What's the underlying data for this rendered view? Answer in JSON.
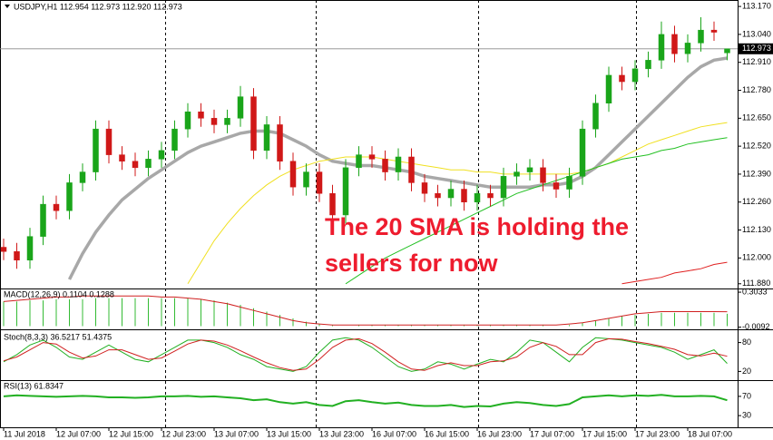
{
  "chart_data": {
    "type": "candlestick",
    "title": "USDJPY,H1  112.954 112.973 112.920 112.973",
    "categories": [
      "11 Jul 2018",
      null,
      null,
      null,
      "12 Jul 07:00",
      null,
      null,
      null,
      "12 Jul 15:00",
      null,
      null,
      null,
      "12 Jul 23:00",
      null,
      null,
      null,
      "13 Jul 07:00",
      null,
      null,
      null,
      "13 Jul 15:00",
      null,
      null,
      null,
      "13 Jul 23:00",
      null,
      null,
      null,
      "16 Jul 07:00",
      null,
      null,
      null,
      "16 Jul 15:00",
      null,
      null,
      null,
      "16 Jul 23:00",
      null,
      null,
      null,
      "17 Jul 07:00",
      null,
      null,
      null,
      "17 Jul 15:00",
      null,
      null,
      null,
      "17 Jul 23:00",
      null,
      null,
      null,
      "18 Jul 07:00",
      null,
      null,
      null
    ],
    "open": [
      112.05,
      112.03,
      111.99,
      112.1,
      112.25,
      112.22,
      112.35,
      112.4,
      112.6,
      112.48,
      112.45,
      112.42,
      112.46,
      112.5,
      112.6,
      112.68,
      112.65,
      112.62,
      112.65,
      112.75,
      112.5,
      112.62,
      112.45,
      112.33,
      112.4,
      112.3,
      112.2,
      112.42,
      112.48,
      112.46,
      112.4,
      112.47,
      112.35,
      112.3,
      112.28,
      112.32,
      112.26,
      112.3,
      112.28,
      112.38,
      112.4,
      112.42,
      112.35,
      112.32,
      112.38,
      112.6,
      112.72,
      112.85,
      112.82,
      112.88,
      112.92,
      113.04,
      112.95,
      113.0,
      113.06,
      112.954
    ],
    "high": [
      112.09,
      112.07,
      112.14,
      112.29,
      112.29,
      112.39,
      112.44,
      112.64,
      112.64,
      112.52,
      112.49,
      112.5,
      112.54,
      112.64,
      112.72,
      112.72,
      112.69,
      112.69,
      112.8,
      112.79,
      112.66,
      112.66,
      112.49,
      112.44,
      112.44,
      112.34,
      112.46,
      112.52,
      112.52,
      112.5,
      112.51,
      112.51,
      112.39,
      112.34,
      112.36,
      112.36,
      112.34,
      112.34,
      112.42,
      112.44,
      112.46,
      112.46,
      112.39,
      112.42,
      112.64,
      112.76,
      112.89,
      112.89,
      112.92,
      112.96,
      113.1,
      113.08,
      113.04,
      113.12,
      113.1,
      112.973
    ],
    "low": [
      111.99,
      111.95,
      111.95,
      112.06,
      112.18,
      112.18,
      112.31,
      112.36,
      112.44,
      112.41,
      112.38,
      112.38,
      112.42,
      112.46,
      112.56,
      112.61,
      112.58,
      112.58,
      112.61,
      112.46,
      112.46,
      112.41,
      112.29,
      112.29,
      112.26,
      112.16,
      112.16,
      112.38,
      112.42,
      112.36,
      112.36,
      112.31,
      112.26,
      112.24,
      112.24,
      112.22,
      112.22,
      112.24,
      112.24,
      112.34,
      112.36,
      112.31,
      112.28,
      112.28,
      112.34,
      112.56,
      112.68,
      112.78,
      112.78,
      112.84,
      112.88,
      112.91,
      112.91,
      112.96,
      113.01,
      112.92
    ],
    "close": [
      112.03,
      111.99,
      112.1,
      112.25,
      112.22,
      112.35,
      112.4,
      112.6,
      112.48,
      112.45,
      112.42,
      112.46,
      112.5,
      112.6,
      112.68,
      112.65,
      112.62,
      112.65,
      112.75,
      112.5,
      112.62,
      112.45,
      112.33,
      112.4,
      112.3,
      112.2,
      112.42,
      112.48,
      112.46,
      112.4,
      112.47,
      112.35,
      112.3,
      112.28,
      112.32,
      112.26,
      112.3,
      112.28,
      112.38,
      112.4,
      112.42,
      112.35,
      112.32,
      112.38,
      112.6,
      112.72,
      112.85,
      112.82,
      112.88,
      112.92,
      113.04,
      112.95,
      113.0,
      113.06,
      113.05,
      112.973
    ],
    "up_color": "#1aa51a",
    "down_color": "#d01818",
    "ylim": [
      111.858,
      113.2
    ],
    "yticks": [
      {
        "value": 113.17,
        "label": "113.170"
      },
      {
        "value": 113.04,
        "label": "113.040"
      },
      {
        "value": 112.91,
        "label": "112.910"
      },
      {
        "value": 112.78,
        "label": "112.780"
      },
      {
        "value": 112.65,
        "label": "112.650"
      },
      {
        "value": 112.52,
        "label": "112.520"
      },
      {
        "value": 112.39,
        "label": "112.390"
      },
      {
        "value": 112.26,
        "label": "112.260"
      },
      {
        "value": 112.13,
        "label": "112.130"
      },
      {
        "value": 112.0,
        "label": "112.000"
      },
      {
        "value": 111.88,
        "label": "111.880"
      }
    ],
    "last_price": {
      "value": 112.973,
      "label": "112.973"
    },
    "overlays": [
      {
        "color": "#a8a8a8",
        "width": 3.5,
        "values": [
          null,
          null,
          null,
          null,
          null,
          111.9,
          112.02,
          112.12,
          112.2,
          112.27,
          112.32,
          112.37,
          112.41,
          112.45,
          112.49,
          112.52,
          112.54,
          112.56,
          112.58,
          112.59,
          112.59,
          112.58,
          112.55,
          112.52,
          112.48,
          112.45,
          112.44,
          112.43,
          112.43,
          112.42,
          112.41,
          112.4,
          112.38,
          112.37,
          112.36,
          112.35,
          112.34,
          112.33,
          112.33,
          112.33,
          112.33,
          112.34,
          112.34,
          112.35,
          112.38,
          112.42,
          112.48,
          112.54,
          112.6,
          112.66,
          112.72,
          112.78,
          112.84,
          112.89,
          112.92,
          112.93
        ]
      },
      {
        "color": "#f0e020",
        "width": 1,
        "values": [
          null,
          null,
          null,
          null,
          null,
          null,
          null,
          null,
          null,
          null,
          null,
          null,
          null,
          null,
          111.88,
          111.98,
          112.08,
          112.16,
          112.23,
          112.29,
          112.34,
          112.38,
          112.41,
          112.43,
          112.45,
          112.46,
          112.47,
          112.47,
          112.47,
          112.46,
          112.45,
          112.44,
          112.43,
          112.42,
          112.41,
          112.41,
          112.4,
          112.4,
          112.39,
          112.39,
          112.39,
          112.39,
          112.39,
          112.39,
          112.4,
          112.42,
          112.44,
          112.47,
          112.5,
          112.53,
          112.55,
          112.57,
          112.59,
          112.61,
          112.62,
          112.63
        ]
      },
      {
        "color": "#22c022",
        "width": 1,
        "values": [
          null,
          null,
          null,
          null,
          null,
          null,
          null,
          null,
          null,
          null,
          null,
          null,
          null,
          null,
          null,
          null,
          null,
          null,
          null,
          null,
          null,
          null,
          null,
          null,
          null,
          null,
          111.88,
          111.92,
          111.96,
          112.0,
          112.03,
          112.06,
          112.09,
          112.12,
          112.15,
          112.18,
          112.21,
          112.24,
          112.27,
          112.3,
          112.32,
          112.34,
          112.36,
          112.38,
          112.4,
          112.42,
          112.44,
          112.46,
          112.47,
          112.48,
          112.5,
          112.51,
          112.53,
          112.54,
          112.55,
          112.56
        ]
      },
      {
        "color": "#e02020",
        "width": 1,
        "values": [
          null,
          null,
          null,
          null,
          null,
          null,
          null,
          null,
          null,
          null,
          null,
          null,
          null,
          null,
          null,
          null,
          null,
          null,
          null,
          null,
          null,
          null,
          null,
          null,
          null,
          null,
          null,
          null,
          null,
          null,
          null,
          null,
          null,
          null,
          null,
          null,
          null,
          null,
          null,
          null,
          null,
          null,
          null,
          null,
          null,
          null,
          null,
          111.88,
          111.89,
          111.9,
          111.91,
          111.93,
          111.94,
          111.95,
          111.97,
          111.98
        ]
      }
    ],
    "annotation": [
      "The 20 SMA is holding the",
      "sellers for now"
    ],
    "annotation_color": "#ee1c2e",
    "indicators": [
      {
        "title": "MACD(12,26,9) 0.1104 0.1288",
        "ylim": [
          -0.02,
          0.32
        ],
        "yticks": [
          0.3033,
          -0.0092
        ],
        "histogram": {
          "color": "#33bb33",
          "values": [
            0.22,
            0.22,
            0.23,
            0.23,
            0.24,
            0.24,
            0.24,
            0.25,
            0.25,
            0.25,
            0.25,
            0.25,
            0.25,
            0.25,
            0.25,
            0.24,
            0.23,
            0.21,
            0.19,
            0.16,
            0.13,
            0.1,
            0.07,
            0.04,
            0.02,
            0.01,
            0.0,
            0.01,
            0.01,
            0.01,
            0.01,
            0.01,
            0.01,
            0.01,
            0.01,
            0.01,
            0.01,
            0.01,
            0.01,
            0.01,
            0.01,
            0.01,
            0.0,
            0.01,
            0.03,
            0.05,
            0.07,
            0.09,
            0.1,
            0.11,
            0.12,
            0.12,
            0.12,
            0.12,
            0.12,
            0.1104
          ]
        },
        "series": [
          {
            "color": "#d02020",
            "values": [
              0.22,
              0.23,
              0.24,
              0.25,
              0.26,
              0.26,
              0.27,
              0.27,
              0.27,
              0.27,
              0.27,
              0.27,
              0.26,
              0.26,
              0.25,
              0.24,
              0.22,
              0.2,
              0.17,
              0.14,
              0.11,
              0.08,
              0.05,
              0.03,
              0.02,
              0.01,
              0.01,
              0.01,
              0.01,
              0.01,
              0.01,
              0.01,
              0.01,
              0.01,
              0.01,
              0.01,
              0.01,
              0.01,
              0.01,
              0.01,
              0.01,
              0.01,
              0.01,
              0.02,
              0.03,
              0.05,
              0.07,
              0.09,
              0.11,
              0.12,
              0.13,
              0.13,
              0.13,
              0.13,
              0.13,
              0.1288
            ]
          }
        ]
      },
      {
        "title": "Stoch(8,3,3) 36.5217 51.4375",
        "ylim": [
          0,
          100
        ],
        "yticks": [
          80,
          20
        ],
        "series": [
          {
            "color": "#22b022",
            "values": [
              40,
              55,
              75,
              85,
              70,
              50,
              45,
              60,
              75,
              60,
              45,
              40,
              55,
              70,
              85,
              85,
              80,
              70,
              55,
              45,
              30,
              25,
              20,
              30,
              60,
              85,
              90,
              85,
              70,
              50,
              30,
              20,
              25,
              40,
              35,
              25,
              35,
              45,
              40,
              60,
              85,
              80,
              60,
              40,
              70,
              90,
              88,
              85,
              80,
              75,
              70,
              60,
              45,
              55,
              65,
              36.5217
            ]
          },
          {
            "color": "#d02020",
            "values": [
              42,
              50,
              65,
              80,
              77,
              60,
              48,
              52,
              65,
              65,
              55,
              45,
              48,
              62,
              77,
              85,
              83,
              75,
              63,
              50,
              38,
              28,
              22,
              25,
              45,
              70,
              85,
              88,
              78,
              60,
              40,
              25,
              22,
              32,
              38,
              32,
              32,
              40,
              42,
              50,
              70,
              80,
              72,
              55,
              55,
              80,
              88,
              87,
              82,
              78,
              72,
              66,
              55,
              52,
              58,
              51.4375
            ]
          }
        ]
      },
      {
        "title": "RSI(13) 61.8347",
        "ylim": [
          0,
          100
        ],
        "yticks": [
          70,
          30
        ],
        "series": [
          {
            "color": "#22b022",
            "width": 2,
            "values": [
              70,
              72,
              71,
              70,
              69,
              70,
              71,
              70,
              68,
              68,
              67,
              68,
              70,
              70,
              71,
              69,
              70,
              68,
              66,
              62,
              64,
              58,
              55,
              58,
              52,
              50,
              60,
              62,
              58,
              55,
              57,
              52,
              50,
              50,
              52,
              48,
              50,
              49,
              55,
              58,
              56,
              52,
              50,
              54,
              68,
              70,
              72,
              70,
              72,
              71,
              73,
              70,
              70,
              71,
              70,
              61.8347
            ]
          }
        ]
      }
    ]
  }
}
